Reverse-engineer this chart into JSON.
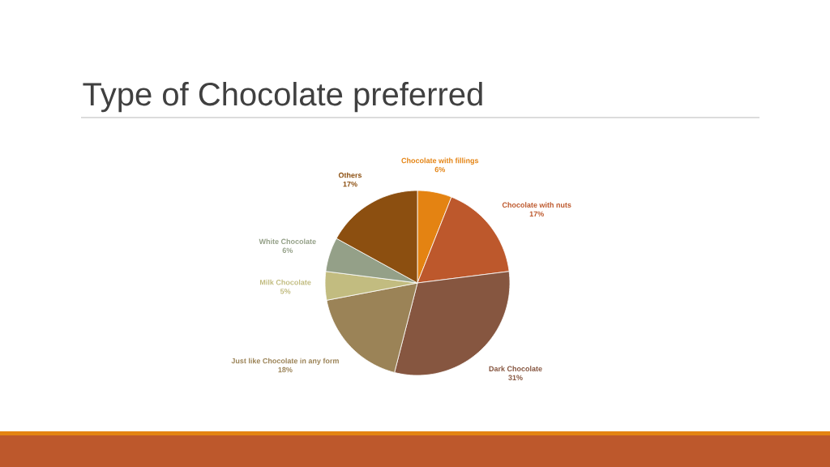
{
  "chart_data": {
    "type": "pie",
    "title": "Type of Chocolate preferred",
    "categories": [
      "Chocolate with fillings",
      "Chocolate with nuts",
      "Dark Chocolate",
      "Just like Chocolate in any form",
      "Milk Chocolate",
      "White Chocolate",
      "Others"
    ],
    "values": [
      6,
      17,
      31,
      18,
      5,
      6,
      17
    ],
    "value_labels": [
      "6%",
      "17%",
      "31%",
      "18%",
      "5%",
      "6%",
      "17%"
    ],
    "colors": [
      "#e48312",
      "#bd582c",
      "#865640",
      "#9b8357",
      "#c2bc80",
      "#94a088",
      "#8c4f10"
    ],
    "legend": false
  }
}
